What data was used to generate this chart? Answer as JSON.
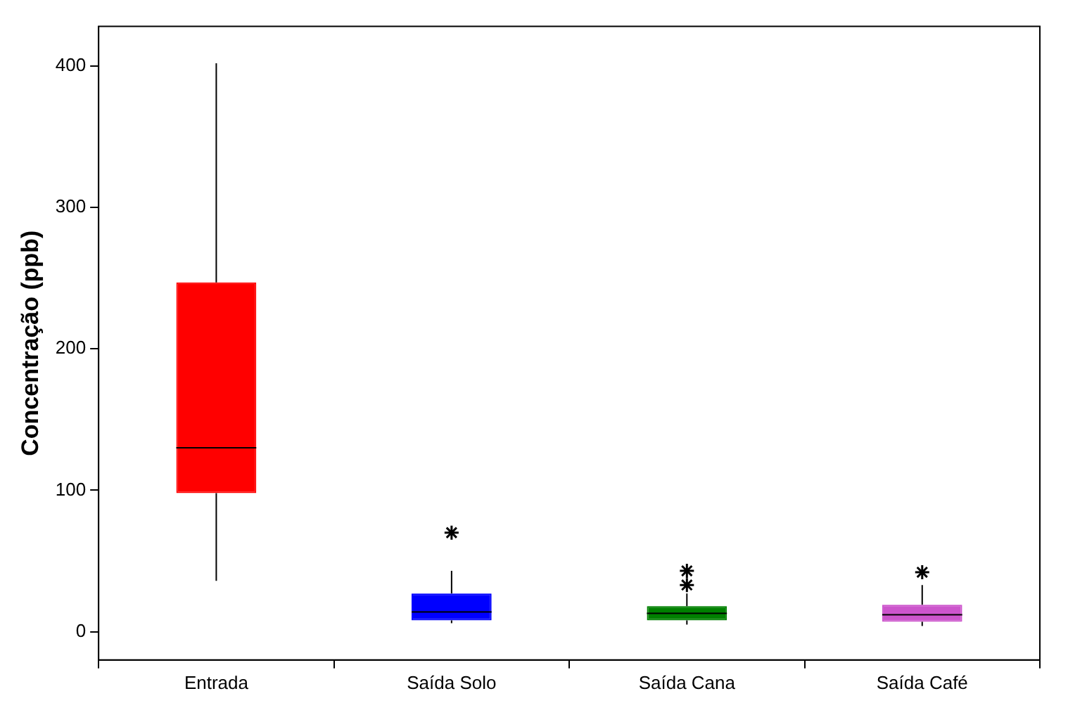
{
  "chart_data": {
    "type": "box",
    "ylabel": "Concentração (ppb)",
    "categories": [
      "Entrada",
      "Saída Solo",
      "Saída Cana",
      "Saída Café"
    ],
    "colors": [
      "#ff0000",
      "#0000ff",
      "#008000",
      "#cc55cc"
    ],
    "boxes": [
      {
        "low": 36,
        "q1": 98,
        "median": 130,
        "q3": 247,
        "high": 402
      },
      {
        "low": 6,
        "q1": 8,
        "median": 14,
        "q3": 27,
        "high": 43,
        "outliers": [
          70
        ]
      },
      {
        "low": 5,
        "q1": 8,
        "median": 13,
        "q3": 18,
        "high": 27,
        "outliers": [
          33,
          43
        ]
      },
      {
        "low": 4,
        "q1": 7,
        "median": 12,
        "q3": 19,
        "high": 33,
        "outliers": [
          42
        ]
      }
    ],
    "ylim": [
      -20,
      428
    ],
    "yticks": [
      0,
      100,
      200,
      300,
      400
    ],
    "grid": false,
    "legend": false
  }
}
